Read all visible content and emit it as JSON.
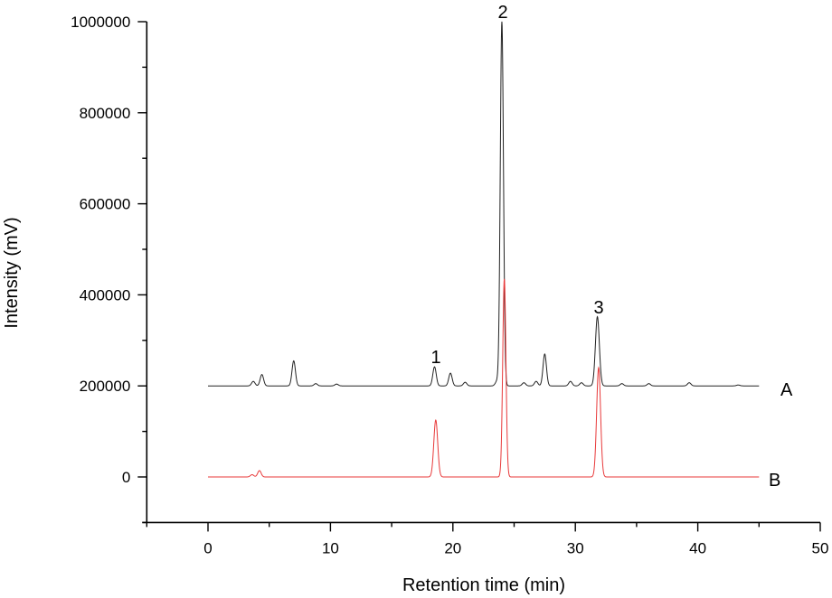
{
  "chart_data": {
    "type": "line",
    "title": "",
    "xlabel": "Retention time (min)",
    "ylabel": "Intensity (mV)",
    "xlim": [
      -5,
      50
    ],
    "ylim": [
      -100000,
      1000000
    ],
    "x_ticks": [
      0,
      10,
      20,
      30,
      40,
      50
    ],
    "x_tick_labels": [
      "0",
      "10",
      "20",
      "30",
      "40",
      "50"
    ],
    "y_ticks": [
      0,
      200000,
      400000,
      600000,
      800000,
      1000000
    ],
    "y_tick_labels": [
      "0",
      "200000",
      "400000",
      "600000",
      "800000",
      "1000000"
    ],
    "grid": false,
    "legend": "none (traces labeled at right end)",
    "series": [
      {
        "name": "A",
        "color": "#000000",
        "baseline": 200000,
        "x_range": [
          0,
          45
        ],
        "peaks": [
          {
            "x": 3.7,
            "y": 210000
          },
          {
            "x": 4.4,
            "y": 225000
          },
          {
            "x": 7.0,
            "y": 255000
          },
          {
            "x": 8.8,
            "y": 205000
          },
          {
            "x": 10.5,
            "y": 204000
          },
          {
            "x": 18.5,
            "y": 242000,
            "label": "1"
          },
          {
            "x": 19.8,
            "y": 228000
          },
          {
            "x": 21.0,
            "y": 208000
          },
          {
            "x": 23.6,
            "y": 210000
          },
          {
            "x": 24.0,
            "y": 1000000,
            "label": "2"
          },
          {
            "x": 25.8,
            "y": 207000
          },
          {
            "x": 26.8,
            "y": 210000
          },
          {
            "x": 27.5,
            "y": 270000
          },
          {
            "x": 29.6,
            "y": 210000
          },
          {
            "x": 30.5,
            "y": 207000
          },
          {
            "x": 31.8,
            "y": 352000,
            "label": "3"
          },
          {
            "x": 33.8,
            "y": 205000
          },
          {
            "x": 36.0,
            "y": 205000
          },
          {
            "x": 39.3,
            "y": 207000
          },
          {
            "x": 43.3,
            "y": 202000
          }
        ]
      },
      {
        "name": "B",
        "color": "#ff0000",
        "baseline": 0,
        "x_range": [
          0,
          45
        ],
        "peaks": [
          {
            "x": 3.6,
            "y": 5000
          },
          {
            "x": 4.2,
            "y": 14000
          },
          {
            "x": 18.6,
            "y": 125000
          },
          {
            "x": 24.2,
            "y": 435000
          },
          {
            "x": 31.9,
            "y": 240000
          }
        ]
      }
    ],
    "annotations": [
      {
        "text": "1",
        "x": 18.6,
        "y": 265000
      },
      {
        "text": "2",
        "x": 24.0,
        "y": 1020000
      },
      {
        "text": "3",
        "x": 31.9,
        "y": 375000
      },
      {
        "text": "A",
        "x": 47.3,
        "y": 195000
      },
      {
        "text": "B",
        "x": 47.3,
        "y": -5000
      }
    ]
  },
  "labels": {
    "peak_1": "1",
    "peak_2": "2",
    "peak_3": "3",
    "trace_a": "A",
    "trace_b": "B",
    "xlabel": "Retention time (min)",
    "ylabel": "Intensity (mV)"
  }
}
